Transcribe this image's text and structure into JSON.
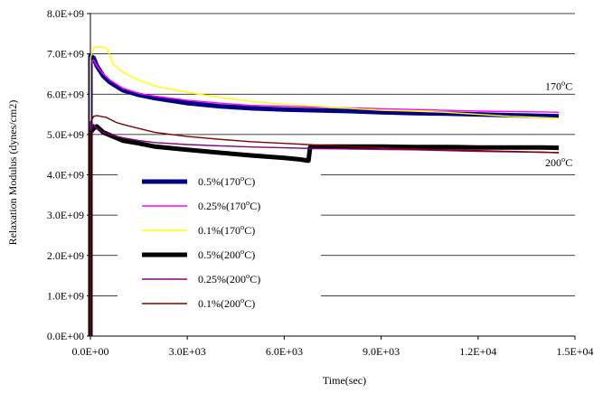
{
  "chart_data": {
    "type": "line",
    "title": "",
    "xlabel": "Time(sec)",
    "ylabel": "Relaxation Modulus (dynes/cm2)",
    "xlim": [
      0,
      15000
    ],
    "ylim": [
      0,
      8000000000
    ],
    "x_ticks": [
      0,
      3000,
      6000,
      9000,
      12000,
      15000
    ],
    "x_tick_labels": [
      "0.0E+00",
      "3.0E+03",
      "6.0E+03",
      "9.0E+03",
      "1.2E+04",
      "1.5E+04"
    ],
    "y_ticks": [
      0,
      1000000000,
      2000000000,
      3000000000,
      4000000000,
      5000000000,
      6000000000,
      7000000000,
      8000000000
    ],
    "y_tick_labels": [
      "0.0E+00",
      "1.0E+09",
      "2.0E+09",
      "3.0E+09",
      "4.0E+09",
      "5.0E+09",
      "6.0E+09",
      "7.0E+09",
      "8.0E+09"
    ],
    "grid": "horizontal",
    "legend_position": "lower-left",
    "annotations": [
      {
        "base": "170",
        "sup": "o",
        "tail": "C",
        "x": 14500,
        "y": 6200000000
      },
      {
        "base": "200",
        "sup": "o",
        "tail": "C",
        "x": 14500,
        "y": 4300000000
      }
    ],
    "series": [
      {
        "name": "0.5%(170oC)",
        "label": {
          "base": "0.5%(170",
          "sup": "o",
          "tail": "C)"
        },
        "color": "#000080",
        "width": 5,
        "x": [
          0,
          100,
          200,
          400,
          600,
          1000,
          1500,
          2000,
          3000,
          4000,
          5000,
          6000,
          7000,
          8000,
          9000,
          10000,
          11000,
          12000,
          13000,
          14000,
          14500
        ],
        "y": [
          6950000000.0,
          6900000000.0,
          6700000000.0,
          6450000000.0,
          6300000000.0,
          6100000000.0,
          5980000000.0,
          5900000000.0,
          5780000000.0,
          5700000000.0,
          5650000000.0,
          5620000000.0,
          5600000000.0,
          5580000000.0,
          5550000000.0,
          5530000000.0,
          5520000000.0,
          5500000000.0,
          5480000000.0,
          5460000000.0,
          5450000000.0
        ]
      },
      {
        "name": "0.25%(170oC)",
        "label": {
          "base": "0.25%(170",
          "sup": "o",
          "tail": "C)"
        },
        "color": "#ff00ff",
        "width": 1.4,
        "x": [
          0,
          100,
          200,
          400,
          600,
          1000,
          1500,
          2000,
          3000,
          4000,
          5000,
          6000,
          7000,
          8000,
          9000,
          10000,
          11000,
          12000,
          13000,
          14000,
          14500
        ],
        "y": [
          6800000000.0,
          6850000000.0,
          6700000000.0,
          6500000000.0,
          6350000000.0,
          6150000000.0,
          6020000000.0,
          5950000000.0,
          5850000000.0,
          5780000000.0,
          5720000000.0,
          5700000000.0,
          5680000000.0,
          5660000000.0,
          5640000000.0,
          5620000000.0,
          5600000000.0,
          5580000000.0,
          5570000000.0,
          5560000000.0,
          5550000000.0
        ]
      },
      {
        "name": "0.1%(170oC)",
        "label": {
          "base": "0.1%(170",
          "sup": "o",
          "tail": "C)"
        },
        "color": "#ffff00",
        "width": 1.4,
        "x": [
          0,
          100,
          200,
          500,
          700,
          1000,
          1500,
          2000,
          3000,
          4000,
          5000,
          6000,
          7000,
          8000,
          9000,
          10000,
          11000,
          12000,
          13000,
          14000,
          14500
        ],
        "y": [
          6900000000.0,
          7150000000.0,
          7180000000.0,
          7150000000.0,
          6750000000.0,
          6550000000.0,
          6350000000.0,
          6200000000.0,
          6050000000.0,
          5920000000.0,
          5820000000.0,
          5750000000.0,
          5700000000.0,
          5650000000.0,
          5600000000.0,
          5580000000.0,
          5550000000.0,
          5500000000.0,
          5450000000.0,
          5420000000.0,
          5400000000.0
        ]
      },
      {
        "name": "0.5%(200oC)",
        "label": {
          "base": "0.5%(200",
          "sup": "o",
          "tail": "C)"
        },
        "color": "#000000",
        "width": 5,
        "x": [
          0,
          100,
          200,
          400,
          700,
          1000,
          1500,
          2000,
          3000,
          4000,
          5000,
          6000,
          6500,
          6750,
          6800,
          7000,
          8000,
          9000,
          10000,
          11000,
          12000,
          13000,
          14000,
          14500
        ],
        "y": [
          5050000000.0,
          5150000000.0,
          5200000000.0,
          5050000000.0,
          4950000000.0,
          4850000000.0,
          4780000000.0,
          4700000000.0,
          4620000000.0,
          4550000000.0,
          4480000000.0,
          4420000000.0,
          4380000000.0,
          4350000000.0,
          4680000000.0,
          4700000000.0,
          4700000000.0,
          4700000000.0,
          4690000000.0,
          4690000000.0,
          4680000000.0,
          4680000000.0,
          4680000000.0,
          4670000000.0
        ]
      },
      {
        "name": "0.25%(200oC)",
        "label": {
          "base": "0.25%(200",
          "sup": "o",
          "tail": "C)"
        },
        "color": "#800080",
        "width": 1.4,
        "x": [
          0,
          100,
          200,
          400,
          700,
          1000,
          1500,
          2000,
          3000,
          4000,
          5000,
          6000,
          7000,
          8000,
          9000,
          10000,
          11000,
          12000,
          13000,
          14000,
          14500
        ],
        "y": [
          5100000000.0,
          5250000000.0,
          5150000000.0,
          5050000000.0,
          4980000000.0,
          4920000000.0,
          4850000000.0,
          4800000000.0,
          4750000000.0,
          4720000000.0,
          4690000000.0,
          4670000000.0,
          4650000000.0,
          4640000000.0,
          4630000000.0,
          4620000000.0,
          4600000000.0,
          4580000000.0,
          4570000000.0,
          4560000000.0,
          4550000000.0
        ]
      },
      {
        "name": "0.1%(200oC)",
        "label": {
          "base": "0.1%(200",
          "sup": "o",
          "tail": "C)"
        },
        "color": "#800000",
        "width": 1.4,
        "x": [
          0,
          100,
          200,
          500,
          800,
          1000,
          1500,
          2000,
          3000,
          4000,
          5000,
          6000,
          7000,
          8000,
          9000,
          10000,
          11000,
          12000,
          13000,
          14000,
          14500
        ],
        "y": [
          5300000000.0,
          5450000000.0,
          5470000000.0,
          5420000000.0,
          5300000000.0,
          5250000000.0,
          5150000000.0,
          5050000000.0,
          4950000000.0,
          4880000000.0,
          4820000000.0,
          4780000000.0,
          4740000000.0,
          4700000000.0,
          4670000000.0,
          4640000000.0,
          4620000000.0,
          4600000000.0,
          4580000000.0,
          4560000000.0,
          4550000000.0
        ]
      }
    ]
  }
}
